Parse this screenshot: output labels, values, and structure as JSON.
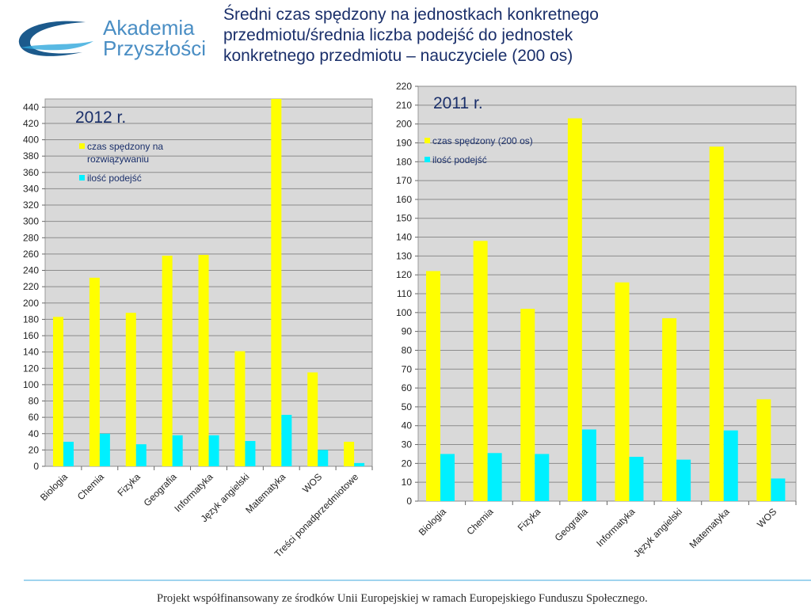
{
  "logo": {
    "line1": "Akademia",
    "line2": "Przyszłości"
  },
  "slide_title": "Średni czas spędzony na jednostkach konkretnego\nprzedmiotu/średnia liczba podejść do jednostek\nkonkretnego przedmiotu – nauczyciele (200 os)",
  "footer": "Projekt współfinansowany ze środków Unii Europejskiej w ramach Europejskiego Funduszu Społecznego.",
  "colors": {
    "yellow": "#ffff00",
    "cyan": "#00f0ff",
    "plot_bg": "#d9d9d9",
    "title": "#1a2f6a",
    "footer_line": "#9fd4ee"
  },
  "chart_data": [
    {
      "type": "bar",
      "title": "2012 r.",
      "categories": [
        "Biologia",
        "Chemia",
        "Fizyka",
        "Geografia",
        "Informatyka",
        "Język angielski",
        "Matematyka",
        "WOS",
        "Treści ponadprzedmiotowe"
      ],
      "series": [
        {
          "name": "czas spędzony na rozwiązywaniu",
          "color": "#ffff00",
          "values": [
            183,
            231,
            188,
            258,
            259,
            141,
            450,
            115,
            30
          ]
        },
        {
          "name": "ilość podejść",
          "color": "#00f0ff",
          "values": [
            30,
            40,
            27,
            38,
            38,
            31,
            63,
            20,
            4
          ]
        }
      ],
      "ylim": [
        0,
        450
      ],
      "yticks": [
        0,
        20,
        40,
        60,
        80,
        100,
        120,
        140,
        160,
        180,
        200,
        220,
        240,
        260,
        280,
        300,
        320,
        340,
        360,
        380,
        400,
        420,
        440
      ],
      "grid": true,
      "legend": "top-left"
    },
    {
      "type": "bar",
      "title": "2011 r.",
      "categories": [
        "Biologia",
        "Chemia",
        "Fizyka",
        "Geografia",
        "Informatyka",
        "Język angielski",
        "Matematyka",
        "WOS"
      ],
      "series": [
        {
          "name": "czas spędzony (200 os)",
          "color": "#ffff00",
          "values": [
            122,
            138,
            102,
            203,
            116,
            97,
            188,
            54
          ]
        },
        {
          "name": "ilość podejść",
          "color": "#00f0ff",
          "values": [
            25,
            25.5,
            25,
            38,
            23.5,
            22,
            37.5,
            12
          ]
        }
      ],
      "ylim": [
        0,
        220
      ],
      "yticks": [
        0,
        10,
        20,
        30,
        40,
        50,
        60,
        70,
        80,
        90,
        100,
        110,
        120,
        130,
        140,
        150,
        160,
        170,
        180,
        190,
        200,
        210,
        220
      ],
      "grid": true,
      "legend": "top-left"
    }
  ]
}
